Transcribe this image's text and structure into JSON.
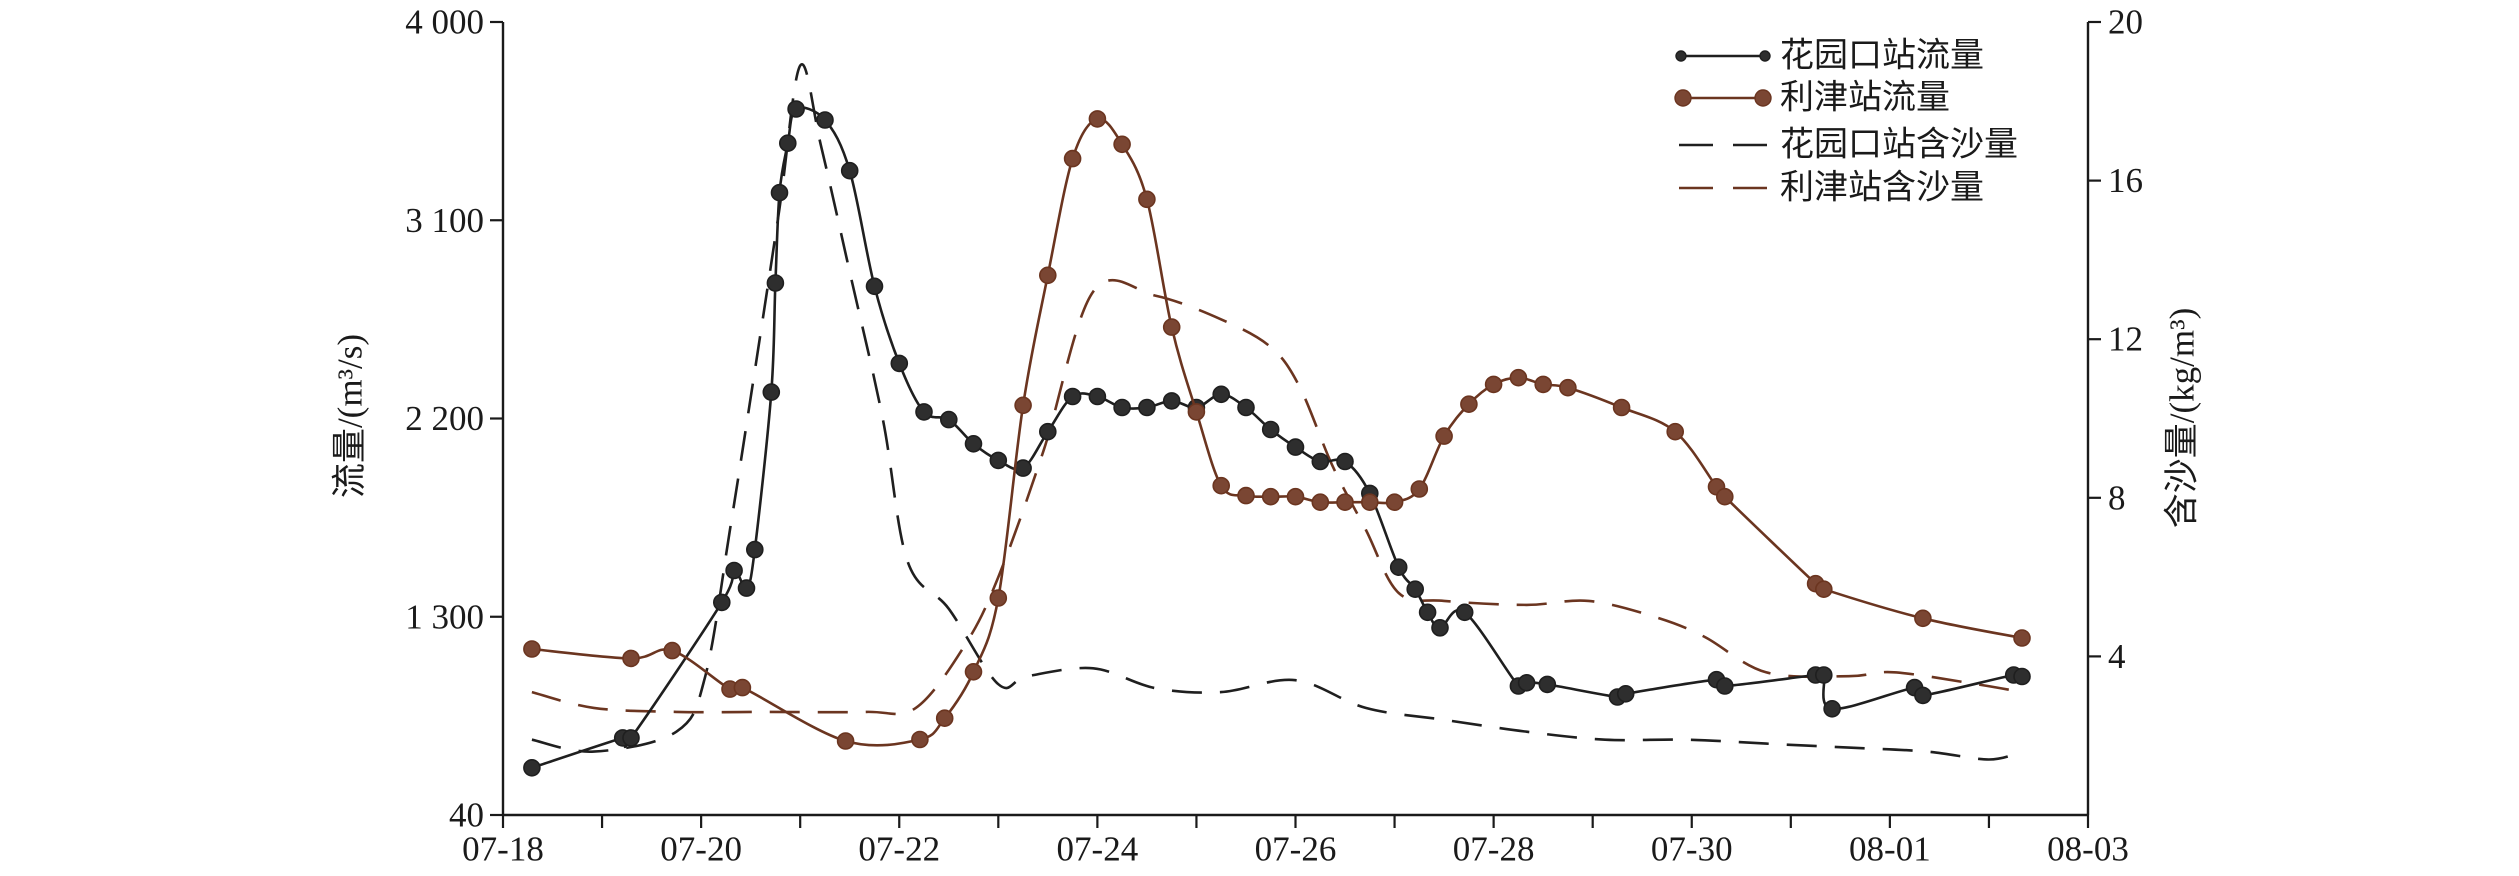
{
  "chart_data": {
    "type": "line",
    "grid": false,
    "legend_position": "top-right",
    "x_ticks": [
      "07-18",
      "07-20",
      "07-22",
      "07-24",
      "07-26",
      "07-28",
      "07-30",
      "08-01",
      "08-03"
    ],
    "xlim": [
      "07-18",
      "08-03"
    ],
    "ylabel": "流量/(m³/s)",
    "y_ticks": [
      {
        "label": "40",
        "value": 40
      },
      {
        "label": "1 300",
        "value": 1300
      },
      {
        "label": "2 200",
        "value": 2200
      },
      {
        "label": "3 100",
        "value": 3100
      },
      {
        "label": "4 000",
        "value": 4000
      }
    ],
    "y2label": "含沙量/(kg/m³)",
    "y2_ticks": [
      4,
      8,
      12,
      16,
      20
    ],
    "y2lim": [
      0,
      20
    ],
    "series": [
      {
        "name": "花园口站流量",
        "color": "#1f1f1f",
        "marker_fill": "#2e2e2e",
        "markers": true,
        "dashed": false,
        "right_axis": false,
        "points": [
          [
            "07-18 07:00",
            340
          ],
          [
            "07-19 05:00",
            530
          ],
          [
            "07-19 07:00",
            530
          ],
          [
            "07-20 05:00",
            1365
          ],
          [
            "07-20 08:00",
            1510
          ],
          [
            "07-20 11:00",
            1430
          ],
          [
            "07-20 13:00",
            1605
          ],
          [
            "07-20 17:00",
            2320
          ],
          [
            "07-20 18:00",
            2815
          ],
          [
            "07-20 19:00",
            3225
          ],
          [
            "07-20 21:00",
            3450
          ],
          [
            "07-20 23:00",
            3605
          ],
          [
            "07-21 06:00",
            3555
          ],
          [
            "07-21 12:00",
            3325
          ],
          [
            "07-21 18:00",
            2800
          ],
          [
            "07-22 00:00",
            2450
          ],
          [
            "07-22 06:00",
            2230
          ],
          [
            "07-22 12:00",
            2195
          ],
          [
            "07-22 18:00",
            2085
          ],
          [
            "07-23 00:00",
            2010
          ],
          [
            "07-23 06:00",
            1975
          ],
          [
            "07-23 12:00",
            2140
          ],
          [
            "07-23 18:00",
            2300
          ],
          [
            "07-24 00:00",
            2300
          ],
          [
            "07-24 06:00",
            2250
          ],
          [
            "07-24 12:00",
            2250
          ],
          [
            "07-24 18:00",
            2280
          ],
          [
            "07-25 00:00",
            2250
          ],
          [
            "07-25 06:00",
            2310
          ],
          [
            "07-25 12:00",
            2250
          ],
          [
            "07-25 18:00",
            2150
          ],
          [
            "07-26 00:00",
            2070
          ],
          [
            "07-26 06:00",
            2005
          ],
          [
            "07-26 12:00",
            2005
          ],
          [
            "07-26 18:00",
            1860
          ],
          [
            "07-27 01:00",
            1525
          ],
          [
            "07-27 05:00",
            1425
          ],
          [
            "07-27 08:00",
            1320
          ],
          [
            "07-27 11:00",
            1230
          ],
          [
            "07-27 17:00",
            1320
          ],
          [
            "07-28 06:00",
            860
          ],
          [
            "07-28 08:00",
            880
          ],
          [
            "07-28 13:00",
            870
          ],
          [
            "07-29 06:00",
            790
          ],
          [
            "07-29 08:00",
            810
          ],
          [
            "07-30 06:00",
            900
          ],
          [
            "07-30 08:00",
            860
          ],
          [
            "07-31 06:00",
            930
          ],
          [
            "07-31 08:00",
            930
          ],
          [
            "07-31 10:00",
            715
          ],
          [
            "08-01 06:00",
            850
          ],
          [
            "08-01 08:00",
            800
          ],
          [
            "08-02 06:00",
            930
          ],
          [
            "08-02 08:00",
            920
          ]
        ]
      },
      {
        "name": "利津站流量",
        "color": "#6b3520",
        "marker_fill": "#7a4633",
        "markers": true,
        "dashed": false,
        "right_axis": false,
        "points": [
          [
            "07-18 07:00",
            1095
          ],
          [
            "07-19 07:00",
            1035
          ],
          [
            "07-19 17:00",
            1085
          ],
          [
            "07-20 07:00",
            840
          ],
          [
            "07-20 10:00",
            850
          ],
          [
            "07-21 11:00",
            510
          ],
          [
            "07-22 05:00",
            520
          ],
          [
            "07-22 11:00",
            655
          ],
          [
            "07-22 18:00",
            950
          ],
          [
            "07-23 00:00",
            1385
          ],
          [
            "07-23 06:00",
            2260
          ],
          [
            "07-23 12:00",
            2850
          ],
          [
            "07-23 18:00",
            3380
          ],
          [
            "07-24 00:00",
            3560
          ],
          [
            "07-24 06:00",
            3445
          ],
          [
            "07-24 12:00",
            3195
          ],
          [
            "07-24 18:00",
            2615
          ],
          [
            "07-25 00:00",
            2230
          ],
          [
            "07-25 06:00",
            1895
          ],
          [
            "07-25 12:00",
            1850
          ],
          [
            "07-25 18:00",
            1845
          ],
          [
            "07-26 00:00",
            1845
          ],
          [
            "07-26 06:00",
            1820
          ],
          [
            "07-26 12:00",
            1820
          ],
          [
            "07-26 18:00",
            1820
          ],
          [
            "07-27 00:00",
            1820
          ],
          [
            "07-27 06:00",
            1880
          ],
          [
            "07-27 12:00",
            2120
          ],
          [
            "07-27 18:00",
            2265
          ],
          [
            "07-28 00:00",
            2355
          ],
          [
            "07-28 06:00",
            2385
          ],
          [
            "07-28 12:00",
            2355
          ],
          [
            "07-28 18:00",
            2340
          ],
          [
            "07-29 07:00",
            2250
          ],
          [
            "07-29 20:00",
            2140
          ],
          [
            "07-30 06:00",
            1890
          ],
          [
            "07-30 08:00",
            1845
          ],
          [
            "07-31 06:00",
            1450
          ],
          [
            "07-31 08:00",
            1425
          ],
          [
            "08-01 08:00",
            1290
          ],
          [
            "08-02 08:00",
            1165
          ]
        ]
      },
      {
        "name": "花园口站含沙量",
        "color": "#1f1f1f",
        "markers": false,
        "dashed": true,
        "right_axis": true,
        "points": [
          [
            "07-18 07:00",
            1.9
          ],
          [
            "07-18 22:00",
            1.6
          ],
          [
            "07-19 18:00",
            2.1
          ],
          [
            "07-20 01:00",
            3.5
          ],
          [
            "07-20 07:00",
            7.2
          ],
          [
            "07-20 13:00",
            11.2
          ],
          [
            "07-20 19:00",
            15.3
          ],
          [
            "07-21 00:00",
            18.9
          ],
          [
            "07-21 05:00",
            16.9
          ],
          [
            "07-21 12:00",
            13.7
          ],
          [
            "07-21 20:00",
            10.0
          ],
          [
            "07-22 02:00",
            6.4
          ],
          [
            "07-22 12:00",
            5.2
          ],
          [
            "07-23 00:00",
            3.3
          ],
          [
            "07-23 07:00",
            3.5
          ],
          [
            "07-23 23:00",
            3.7
          ],
          [
            "07-24 14:00",
            3.2
          ],
          [
            "07-25 06:00",
            3.1
          ],
          [
            "07-26 00:00",
            3.4
          ],
          [
            "07-26 17:00",
            2.7
          ],
          [
            "07-27 12:00",
            2.4
          ],
          [
            "07-28 08:00",
            2.1
          ],
          [
            "07-29 03:00",
            1.9
          ],
          [
            "07-29 23:00",
            1.9
          ],
          [
            "07-30 18:00",
            1.8
          ],
          [
            "07-31 14:00",
            1.7
          ],
          [
            "08-01 09:00",
            1.6
          ],
          [
            "08-02 00:00",
            1.4
          ],
          [
            "08-02 08:00",
            1.6
          ]
        ]
      },
      {
        "name": "利津站含沙量",
        "color": "#6b3520",
        "markers": false,
        "dashed": true,
        "right_axis": true,
        "points": [
          [
            "07-18 07:00",
            3.1
          ],
          [
            "07-18 22:00",
            2.7
          ],
          [
            "07-19 18:00",
            2.6
          ],
          [
            "07-20 17:00",
            2.6
          ],
          [
            "07-21 16:00",
            2.6
          ],
          [
            "07-22 04:00",
            2.7
          ],
          [
            "07-22 16:00",
            4.3
          ],
          [
            "07-23 00:00",
            6.0
          ],
          [
            "07-23 11:00",
            9.2
          ],
          [
            "07-23 23:00",
            13.2
          ],
          [
            "07-24 14:00",
            13.1
          ],
          [
            "07-25 06:00",
            12.5
          ],
          [
            "07-25 18:00",
            11.8
          ],
          [
            "07-26 01:00",
            10.8
          ],
          [
            "07-26 09:00",
            8.8
          ],
          [
            "07-26 17:00",
            7.2
          ],
          [
            "07-27 01:00",
            5.6
          ],
          [
            "07-27 12:00",
            5.4
          ],
          [
            "07-28 08:00",
            5.3
          ],
          [
            "07-28 23:00",
            5.4
          ],
          [
            "07-29 15:00",
            5.0
          ],
          [
            "07-30 03:00",
            4.5
          ],
          [
            "07-30 18:00",
            3.6
          ],
          [
            "07-31 14:00",
            3.5
          ],
          [
            "08-01 01:00",
            3.6
          ],
          [
            "08-01 21:00",
            3.3
          ],
          [
            "08-02 08:00",
            3.1
          ]
        ]
      }
    ]
  }
}
